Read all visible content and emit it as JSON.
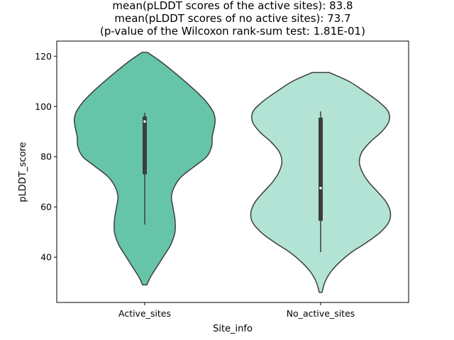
{
  "chart_data": {
    "type": "violin",
    "title_lines": [
      "mean(pLDDT scores of the active sites): 83.8",
      "mean(pLDDT scores of no active sites): 73.7",
      "(p-value of the Wilcoxon rank-sum test: 1.81E-01)"
    ],
    "xlabel": "Site_info",
    "ylabel": "pLDDT_score",
    "ylim": [
      22,
      126
    ],
    "yticks": [
      40,
      60,
      80,
      100,
      120
    ],
    "categories": [
      "Active_sites",
      "No_active_sites"
    ],
    "grid": false,
    "series": [
      {
        "category": "Active_sites",
        "color": "#66c5a8",
        "edge_color": "#3d3d3d",
        "median": 94,
        "q1": 73,
        "q3": 96,
        "whisker_low": 53,
        "whisker_high": 97.5,
        "density": [
          [
            29,
            0.03
          ],
          [
            32,
            0.08
          ],
          [
            36,
            0.17
          ],
          [
            40,
            0.26
          ],
          [
            45,
            0.37
          ],
          [
            50,
            0.43
          ],
          [
            55,
            0.43
          ],
          [
            60,
            0.4
          ],
          [
            64,
            0.38
          ],
          [
            68,
            0.42
          ],
          [
            72,
            0.52
          ],
          [
            76,
            0.7
          ],
          [
            80,
            0.88
          ],
          [
            84,
            0.95
          ],
          [
            88,
            0.96
          ],
          [
            92,
            0.99
          ],
          [
            95,
            1.0
          ],
          [
            98,
            0.97
          ],
          [
            102,
            0.87
          ],
          [
            106,
            0.73
          ],
          [
            110,
            0.57
          ],
          [
            114,
            0.4
          ],
          [
            118,
            0.22
          ],
          [
            121.5,
            0.04
          ]
        ]
      },
      {
        "category": "No_active_sites",
        "color": "#b2e3d4",
        "edge_color": "#3d3d3d",
        "median": 67.5,
        "q1": 54.5,
        "q3": 95.5,
        "whisker_low": 42,
        "whisker_high": 98,
        "density": [
          [
            26,
            0.02
          ],
          [
            30,
            0.06
          ],
          [
            34,
            0.14
          ],
          [
            38,
            0.27
          ],
          [
            42,
            0.44
          ],
          [
            46,
            0.66
          ],
          [
            50,
            0.85
          ],
          [
            54,
            0.97
          ],
          [
            58,
            0.99
          ],
          [
            62,
            0.93
          ],
          [
            66,
            0.81
          ],
          [
            70,
            0.68
          ],
          [
            74,
            0.59
          ],
          [
            78,
            0.55
          ],
          [
            82,
            0.59
          ],
          [
            86,
            0.71
          ],
          [
            90,
            0.87
          ],
          [
            94,
            0.97
          ],
          [
            98,
            0.96
          ],
          [
            102,
            0.82
          ],
          [
            106,
            0.62
          ],
          [
            110,
            0.4
          ],
          [
            113.5,
            0.12
          ]
        ]
      }
    ]
  }
}
